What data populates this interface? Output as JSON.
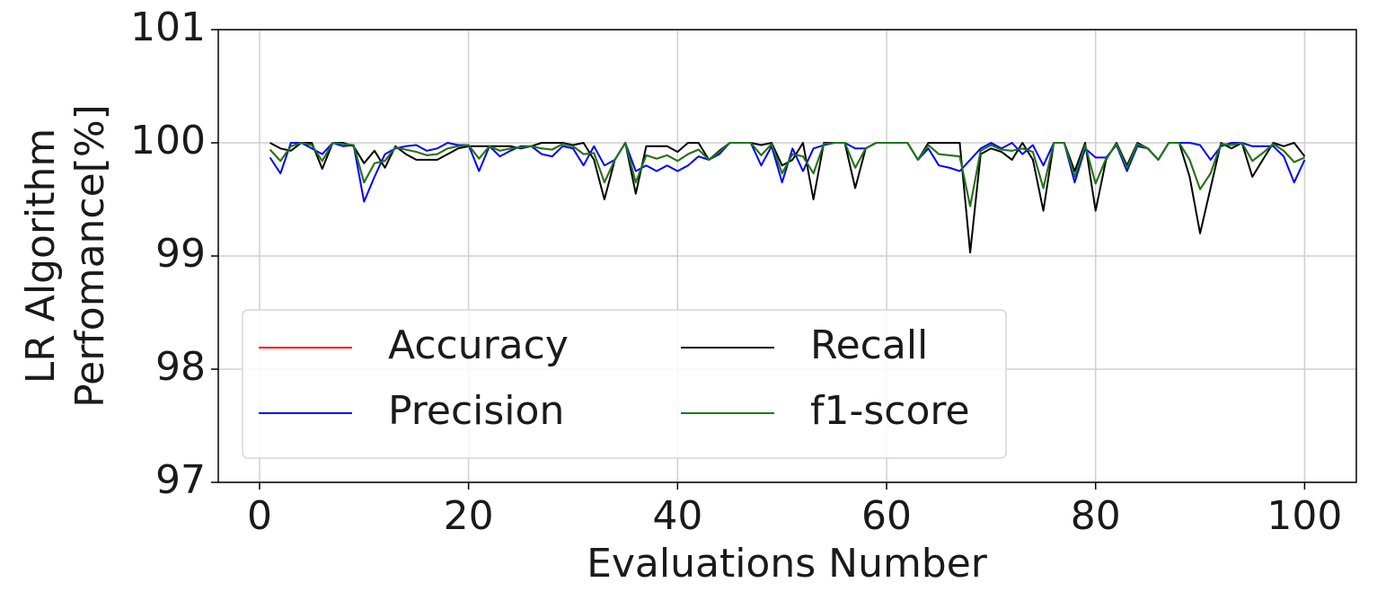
{
  "chart_data": {
    "type": "line",
    "xlabel": "Evaluations Number",
    "ylabel": [
      "LR Algorithm",
      "Perfomance[%]"
    ],
    "x": [
      1,
      2,
      3,
      4,
      5,
      6,
      7,
      8,
      9,
      10,
      11,
      12,
      13,
      14,
      15,
      16,
      17,
      18,
      19,
      20,
      21,
      22,
      23,
      24,
      25,
      26,
      27,
      28,
      29,
      30,
      31,
      32,
      33,
      34,
      35,
      36,
      37,
      38,
      39,
      40,
      41,
      42,
      43,
      44,
      45,
      46,
      47,
      48,
      49,
      50,
      51,
      52,
      53,
      54,
      55,
      56,
      57,
      58,
      59,
      60,
      61,
      62,
      63,
      64,
      65,
      66,
      67,
      68,
      69,
      70,
      71,
      72,
      73,
      74,
      75,
      76,
      77,
      78,
      79,
      80,
      81,
      82,
      83,
      84,
      85,
      86,
      87,
      88,
      89,
      90,
      91,
      92,
      93,
      94,
      95,
      96,
      97,
      98,
      99,
      100
    ],
    "series": [
      {
        "name": "Accuracy",
        "color": "#ff0000",
        "values": [
          99.94,
          99.84,
          99.97,
          100,
          99.98,
          99.84,
          100,
          99.99,
          99.98,
          99.65,
          99.82,
          99.84,
          99.96,
          99.94,
          99.92,
          99.89,
          99.9,
          99.95,
          99.97,
          99.98,
          99.86,
          99.97,
          99.93,
          99.95,
          99.96,
          99.97,
          99.95,
          99.94,
          99.99,
          99.97,
          99.9,
          99.91,
          99.65,
          99.85,
          100,
          99.65,
          99.89,
          99.86,
          99.89,
          99.84,
          99.9,
          99.94,
          99.85,
          99.92,
          100,
          100,
          100,
          99.89,
          99.99,
          99.73,
          99.9,
          99.88,
          99.73,
          99.99,
          100,
          100,
          99.78,
          99.95,
          100,
          100,
          100,
          100,
          99.85,
          99.98,
          99.9,
          99.89,
          99.88,
          99.44,
          99.93,
          99.98,
          99.94,
          99.93,
          99.95,
          99.92,
          99.6,
          100,
          100,
          99.7,
          99.98,
          99.64,
          99.86,
          99.99,
          99.78,
          99.99,
          99.95,
          99.85,
          100,
          100,
          99.85,
          99.59,
          99.73,
          99.99,
          99.98,
          100,
          99.84,
          99.91,
          99.99,
          99.93,
          99.83,
          99.87
        ]
      },
      {
        "name": "Precision",
        "color": "#0000ff",
        "values": [
          99.87,
          99.73,
          100,
          100,
          99.95,
          99.9,
          100,
          99.97,
          99.98,
          99.48,
          99.7,
          99.9,
          99.95,
          99.97,
          99.98,
          99.93,
          99.95,
          100,
          99.98,
          99.98,
          99.75,
          99.97,
          99.88,
          99.93,
          99.97,
          99.97,
          99.9,
          99.88,
          99.97,
          99.95,
          99.8,
          99.97,
          99.8,
          99.85,
          100,
          99.75,
          99.8,
          99.75,
          99.8,
          99.75,
          99.8,
          99.88,
          99.85,
          99.9,
          100,
          100,
          100,
          99.8,
          99.97,
          99.65,
          99.95,
          99.75,
          99.95,
          99.98,
          100,
          100,
          99.95,
          99.95,
          100,
          100,
          100,
          100,
          99.85,
          99.95,
          99.8,
          99.78,
          99.75,
          99.85,
          99.95,
          100,
          99.95,
          100,
          99.9,
          99.98,
          99.8,
          100,
          100,
          99.65,
          99.95,
          99.87,
          99.87,
          99.98,
          99.75,
          99.97,
          99.95,
          99.85,
          100,
          100,
          100,
          99.98,
          99.85,
          99.97,
          100,
          100,
          99.97,
          99.97,
          99.97,
          99.88,
          99.65,
          99.85
        ]
      },
      {
        "name": "Recall",
        "color": "#000000",
        "values": [
          100,
          99.95,
          99.93,
          100,
          100,
          99.77,
          100,
          100,
          99.97,
          99.82,
          99.93,
          99.78,
          99.97,
          99.9,
          99.85,
          99.85,
          99.85,
          99.9,
          99.95,
          99.97,
          99.97,
          99.97,
          99.97,
          99.97,
          99.95,
          99.97,
          100,
          100,
          100,
          99.98,
          100,
          99.85,
          99.5,
          99.85,
          100,
          99.55,
          99.97,
          99.97,
          99.97,
          99.92,
          100,
          100,
          99.85,
          99.93,
          100,
          100,
          100,
          99.98,
          100,
          99.8,
          99.85,
          100,
          99.5,
          100,
          100,
          100,
          99.6,
          99.95,
          100,
          100,
          100,
          100,
          99.85,
          100,
          100,
          100,
          100,
          99.03,
          99.9,
          99.95,
          99.92,
          99.85,
          100,
          99.85,
          99.4,
          100,
          100,
          99.75,
          100,
          99.4,
          99.85,
          100,
          99.8,
          100,
          99.95,
          99.85,
          100,
          100,
          99.7,
          99.2,
          99.6,
          100,
          99.95,
          100,
          99.7,
          99.85,
          100,
          99.97,
          100,
          99.88
        ]
      },
      {
        "name": "f1-score",
        "color": "#1a7a1a",
        "values": [
          99.94,
          99.84,
          99.97,
          100,
          99.98,
          99.84,
          100,
          99.99,
          99.98,
          99.65,
          99.82,
          99.84,
          99.96,
          99.94,
          99.92,
          99.89,
          99.9,
          99.95,
          99.97,
          99.98,
          99.86,
          99.97,
          99.93,
          99.95,
          99.96,
          99.97,
          99.95,
          99.94,
          99.99,
          99.97,
          99.9,
          99.91,
          99.65,
          99.85,
          100,
          99.65,
          99.89,
          99.86,
          99.89,
          99.84,
          99.9,
          99.94,
          99.85,
          99.92,
          100,
          100,
          100,
          99.89,
          99.99,
          99.73,
          99.9,
          99.88,
          99.73,
          99.99,
          100,
          100,
          99.78,
          99.95,
          100,
          100,
          100,
          100,
          99.85,
          99.98,
          99.9,
          99.89,
          99.88,
          99.44,
          99.93,
          99.98,
          99.94,
          99.93,
          99.95,
          99.92,
          99.6,
          100,
          100,
          99.7,
          99.98,
          99.64,
          99.86,
          99.99,
          99.78,
          99.99,
          99.95,
          99.85,
          100,
          100,
          99.85,
          99.59,
          99.73,
          99.99,
          99.98,
          100,
          99.84,
          99.91,
          99.99,
          99.93,
          99.83,
          99.87
        ]
      }
    ],
    "xlim": [
      -3.95,
      104.95
    ],
    "xticks": [
      0,
      20,
      40,
      60,
      80,
      100
    ],
    "ylim": [
      97,
      101
    ],
    "yticks": [
      97,
      98,
      99,
      100,
      101
    ],
    "grid": true,
    "legend": "lower left"
  }
}
